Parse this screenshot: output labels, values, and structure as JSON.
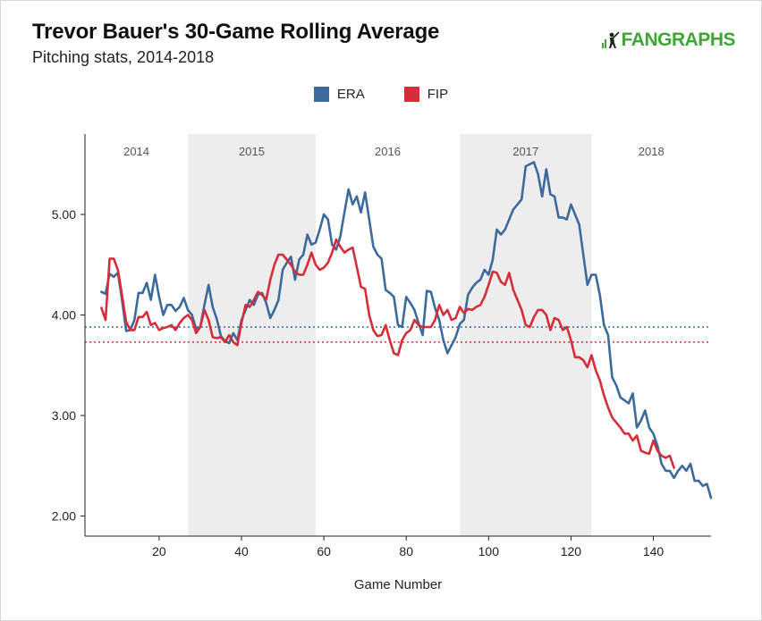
{
  "header": {
    "title": "Trevor Bauer's 30-Game Rolling Average",
    "subtitle": "Pitching stats, 2014-2018",
    "brand": "FANGRAPHS"
  },
  "colors": {
    "era": "#3c6a9c",
    "fip": "#d62d3a",
    "band": "#ededed",
    "brand": "#3fa535"
  },
  "chart_data": {
    "type": "line",
    "xlabel": "Game Number",
    "ylabel": "",
    "xlim": [
      2,
      154
    ],
    "ylim": [
      1.8,
      5.8
    ],
    "xticks": [
      20,
      40,
      60,
      80,
      100,
      120,
      140
    ],
    "yticks": [
      2.0,
      3.0,
      4.0,
      5.0
    ],
    "ytick_labels": [
      "2.00",
      "3.00",
      "4.00",
      "5.00"
    ],
    "grid": false,
    "legend_position": "top-center",
    "seasons": [
      {
        "label": "2014",
        "start": 2,
        "end": 27,
        "shaded": false
      },
      {
        "label": "2015",
        "start": 27,
        "end": 58,
        "shaded": true
      },
      {
        "label": "2016",
        "start": 58,
        "end": 93,
        "shaded": false
      },
      {
        "label": "2017",
        "start": 93,
        "end": 125,
        "shaded": true
      },
      {
        "label": "2018",
        "start": 125,
        "end": 154,
        "shaded": false
      }
    ],
    "reference_lines": [
      {
        "series": "ERA",
        "value": 3.88
      },
      {
        "series": "FIP",
        "value": 3.73
      }
    ],
    "series": [
      {
        "name": "ERA",
        "start_game": 6,
        "values": [
          4.23,
          4.21,
          4.41,
          4.38,
          4.42,
          4.15,
          3.84,
          3.85,
          3.95,
          4.22,
          4.22,
          4.32,
          4.15,
          4.4,
          4.18,
          4.0,
          4.1,
          4.1,
          4.04,
          4.08,
          4.17,
          4.05,
          4.0,
          3.86,
          3.88,
          4.1,
          4.3,
          4.08,
          3.96,
          3.79,
          3.74,
          3.72,
          3.82,
          3.75,
          3.95,
          4.05,
          4.15,
          4.1,
          4.2,
          4.22,
          4.12,
          3.97,
          4.05,
          4.15,
          4.45,
          4.52,
          4.58,
          4.35,
          4.55,
          4.6,
          4.8,
          4.7,
          4.72,
          4.85,
          5.0,
          4.95,
          4.7,
          4.65,
          4.78,
          5.02,
          5.25,
          5.1,
          5.18,
          5.02,
          5.22,
          4.95,
          4.68,
          4.6,
          4.56,
          4.25,
          4.22,
          4.18,
          3.9,
          3.88,
          4.18,
          4.12,
          4.05,
          3.92,
          3.8,
          4.24,
          4.23,
          4.07,
          3.95,
          3.75,
          3.62,
          3.7,
          3.78,
          3.91,
          3.95,
          4.2,
          4.27,
          4.32,
          4.35,
          4.45,
          4.4,
          4.55,
          4.85,
          4.8,
          4.85,
          4.95,
          5.05,
          5.1,
          5.15,
          5.48,
          5.5,
          5.52,
          5.4,
          5.18,
          5.45,
          5.2,
          5.18,
          4.97,
          4.97,
          4.95,
          5.1,
          5.0,
          4.9,
          4.6,
          4.3,
          4.4,
          4.4,
          4.2,
          3.9,
          3.8,
          3.38,
          3.3,
          3.18,
          3.15,
          3.12,
          3.22,
          2.88,
          2.95,
          3.05,
          2.88,
          2.82,
          2.7,
          2.52,
          2.45,
          2.45,
          2.38,
          2.45,
          2.5,
          2.45,
          2.52,
          2.35,
          2.35,
          2.3,
          2.32,
          2.18
        ]
      },
      {
        "name": "FIP",
        "start_game": 6,
        "values": [
          4.07,
          3.95,
          4.56,
          4.56,
          4.45,
          4.2,
          3.93,
          3.85,
          3.85,
          3.98,
          3.98,
          4.03,
          3.9,
          3.92,
          3.85,
          3.87,
          3.88,
          3.9,
          3.85,
          3.92,
          3.97,
          4.0,
          3.95,
          3.82,
          3.88,
          4.05,
          3.95,
          3.78,
          3.77,
          3.78,
          3.73,
          3.8,
          3.73,
          3.7,
          3.92,
          4.1,
          4.08,
          4.15,
          4.23,
          4.2,
          4.15,
          4.35,
          4.5,
          4.6,
          4.6,
          4.55,
          4.5,
          4.43,
          4.4,
          4.4,
          4.5,
          4.62,
          4.5,
          4.45,
          4.47,
          4.52,
          4.62,
          4.75,
          4.68,
          4.62,
          4.65,
          4.67,
          4.48,
          4.28,
          4.26,
          4.0,
          3.85,
          3.79,
          3.8,
          3.9,
          3.75,
          3.62,
          3.6,
          3.75,
          3.82,
          3.85,
          3.95,
          3.9,
          3.88,
          3.88,
          3.88,
          3.95,
          4.1,
          4.0,
          4.05,
          3.95,
          3.97,
          4.08,
          4.02,
          4.06,
          4.05,
          4.08,
          4.1,
          4.18,
          4.3,
          4.43,
          4.42,
          4.33,
          4.3,
          4.42,
          4.25,
          4.15,
          4.05,
          3.9,
          3.88,
          3.98,
          4.05,
          4.05,
          4.0,
          3.85,
          3.97,
          3.95,
          3.85,
          3.88,
          3.75,
          3.58,
          3.58,
          3.55,
          3.48,
          3.6,
          3.45,
          3.35,
          3.2,
          3.08,
          2.98,
          2.93,
          2.88,
          2.82,
          2.82,
          2.75,
          2.8,
          2.65,
          2.63,
          2.62,
          2.75,
          2.65,
          2.6,
          2.58,
          2.6,
          2.48
        ]
      }
    ]
  }
}
